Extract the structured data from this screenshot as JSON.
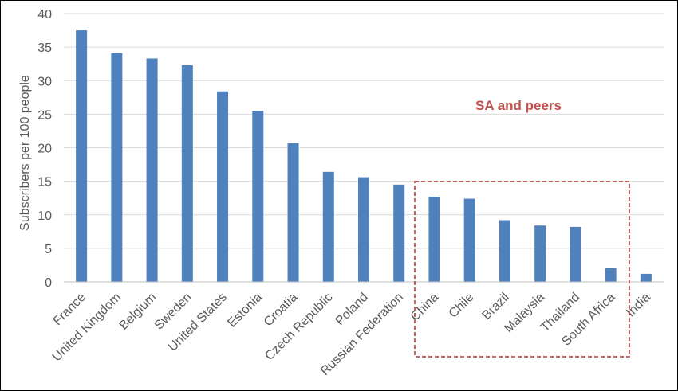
{
  "chart_data": {
    "type": "bar",
    "title": "",
    "xlabel": "",
    "ylabel": "Subscribers per 100 people",
    "ylim": [
      0,
      40
    ],
    "yticks": [
      0,
      5,
      10,
      15,
      20,
      25,
      30,
      35,
      40
    ],
    "grid": true,
    "categories": [
      "France",
      "United Kingdom",
      "Belgium",
      "Sweden",
      "United States",
      "Estonia",
      "Croatia",
      "Czech Republic",
      "Poland",
      "Russian Federation",
      "China",
      "Chile",
      "Brazil",
      "Malaysia",
      "Thailand",
      "South Africa",
      "India"
    ],
    "values": [
      37.5,
      34.1,
      33.3,
      32.3,
      28.4,
      25.5,
      20.7,
      16.4,
      15.6,
      14.5,
      12.7,
      12.4,
      9.2,
      8.4,
      8.2,
      2.1,
      1.2
    ],
    "bar_color": "#4F81BD",
    "annotation": {
      "text": "SA and peers",
      "color": "#C0504D",
      "highlighted_categories": [
        "China",
        "Chile",
        "Brazil",
        "Malaysia",
        "Thailand",
        "South Africa"
      ]
    }
  }
}
